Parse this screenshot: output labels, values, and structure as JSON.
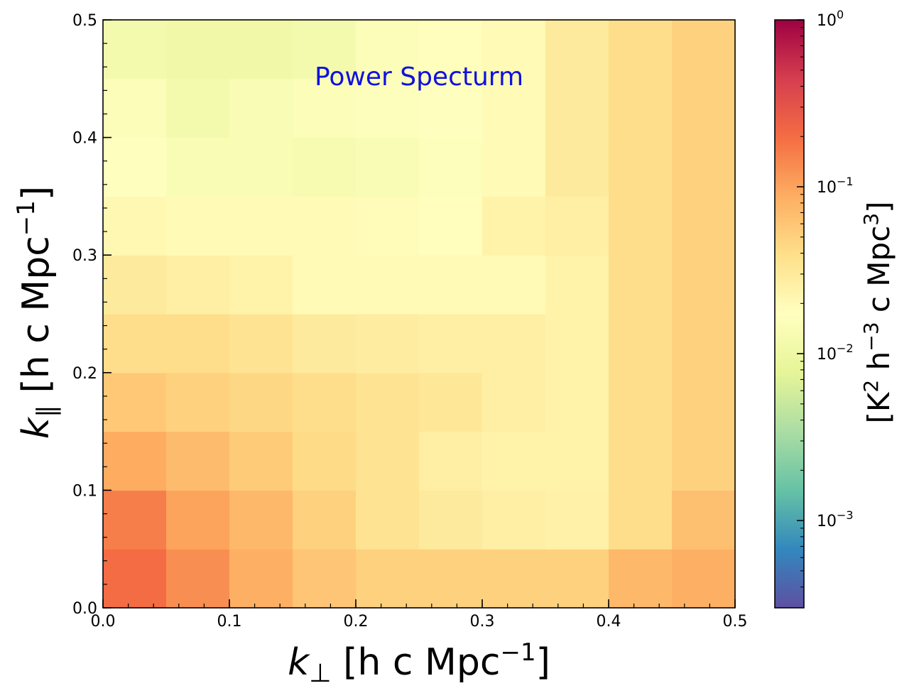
{
  "chart_data": {
    "type": "heatmap",
    "title": "Power Specturm",
    "xlabel": "k_⊥ [h c Mpc⁻¹]",
    "ylabel": "k_∥ [h c Mpc⁻¹]",
    "colorbar_label": "[K² h⁻³ c Mpc³]",
    "title_color": "#1010e0",
    "colormap": "Spectral_r",
    "x_bin_edges": [
      0.0,
      0.05,
      0.1,
      0.15,
      0.2,
      0.25,
      0.3,
      0.35,
      0.4,
      0.45,
      0.5
    ],
    "y_bin_edges": [
      0.0,
      0.05,
      0.1,
      0.15,
      0.2,
      0.25,
      0.3,
      0.35,
      0.4,
      0.45,
      0.5
    ],
    "xlim": [
      0.0,
      0.5
    ],
    "ylim": [
      0.0,
      0.5
    ],
    "x_ticks": [
      0.0,
      0.1,
      0.2,
      0.3,
      0.4,
      0.5
    ],
    "x_tick_labels": [
      "0.0",
      "0.1",
      "0.2",
      "0.3",
      "0.4",
      "0.5"
    ],
    "y_ticks": [
      0.0,
      0.1,
      0.2,
      0.3,
      0.4,
      0.5
    ],
    "y_tick_labels": [
      "0.0",
      "0.1",
      "0.2",
      "0.3",
      "0.4",
      "0.5"
    ],
    "color_scale": "log",
    "color_range": [
      0.0003,
      1.0
    ],
    "colorbar_ticks": [
      {
        "value": 1.0,
        "base": "10",
        "exp": "0"
      },
      {
        "value": 0.1,
        "base": "10",
        "exp": "−1"
      },
      {
        "value": 0.01,
        "base": "10",
        "exp": "−2"
      },
      {
        "value": 0.001,
        "base": "10",
        "exp": "−3"
      }
    ],
    "values_rows_bottom_to_top": [
      [
        0.2,
        0.13,
        0.085,
        0.06,
        0.05,
        0.05,
        0.05,
        0.05,
        0.075,
        0.085
      ],
      [
        0.16,
        0.1,
        0.075,
        0.05,
        0.035,
        0.03,
        0.026,
        0.025,
        0.04,
        0.065
      ],
      [
        0.09,
        0.07,
        0.055,
        0.042,
        0.035,
        0.026,
        0.024,
        0.024,
        0.04,
        0.05
      ],
      [
        0.058,
        0.05,
        0.045,
        0.04,
        0.035,
        0.032,
        0.026,
        0.024,
        0.04,
        0.05
      ],
      [
        0.04,
        0.04,
        0.035,
        0.03,
        0.028,
        0.026,
        0.026,
        0.024,
        0.04,
        0.05
      ],
      [
        0.03,
        0.026,
        0.024,
        0.02,
        0.02,
        0.02,
        0.02,
        0.024,
        0.04,
        0.05
      ],
      [
        0.021,
        0.02,
        0.02,
        0.02,
        0.019,
        0.018,
        0.024,
        0.026,
        0.04,
        0.05
      ],
      [
        0.017,
        0.014,
        0.014,
        0.013,
        0.014,
        0.016,
        0.02,
        0.03,
        0.04,
        0.05
      ],
      [
        0.015,
        0.012,
        0.014,
        0.015,
        0.016,
        0.017,
        0.02,
        0.03,
        0.04,
        0.05
      ],
      [
        0.012,
        0.011,
        0.011,
        0.012,
        0.015,
        0.018,
        0.02,
        0.03,
        0.04,
        0.05
      ]
    ]
  }
}
